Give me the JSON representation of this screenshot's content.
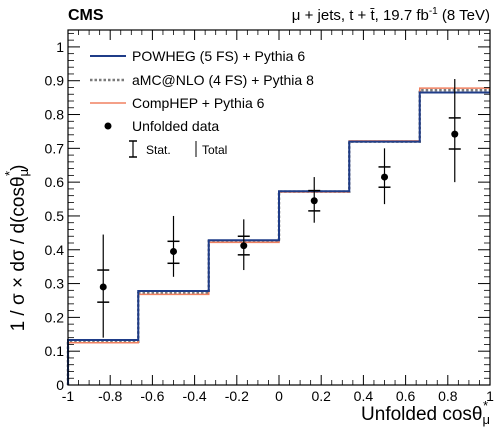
{
  "header": {
    "experiment": "CMS",
    "channel_text": "μ + jets, t + t̄, 19.7 fb",
    "lumi_exponent": "-1",
    "energy_text": " (8 TeV)"
  },
  "axes": {
    "x_title_main": "Unfolded cosθ",
    "x_title_sub": "μ",
    "x_title_sup": "*",
    "y_title_main": "1 / σ × dσ / d(cosθ",
    "y_title_sub": "μ",
    "y_title_sup": "*",
    "y_title_end": ")"
  },
  "legend": {
    "powheg": "POWHEG (5 FS) + Pythia 6",
    "amcnlo": "aMC@NLO (4 FS) + Pythia 8",
    "comphep": "CompHEP + Pythia 6",
    "data": "Unfolded data",
    "stat": "Stat.",
    "total": "Total"
  },
  "colors": {
    "powheg": "#1f3c88",
    "amcnlo": "#7a7a7a",
    "comphep": "#f08060",
    "data": "#000000"
  },
  "chart_data": {
    "type": "histogram-with-points",
    "xlim": [
      -1,
      1
    ],
    "ylim": [
      0,
      1.05
    ],
    "x_ticks": [
      -1,
      -0.8,
      -0.6,
      -0.4,
      -0.2,
      0,
      0.2,
      0.4,
      0.6,
      0.8,
      1
    ],
    "x_tick_labels": [
      "-1",
      "-0.8",
      "-0.6",
      "-0.4",
      "-0.2",
      "0",
      "0.2",
      "0.4",
      "0.6",
      "0.8",
      "1"
    ],
    "y_ticks": [
      0,
      0.1,
      0.2,
      0.3,
      0.4,
      0.5,
      0.6,
      0.7,
      0.8,
      0.9,
      1
    ],
    "y_tick_labels": [
      "0",
      "0.1",
      "0.2",
      "0.3",
      "0.4",
      "0.5",
      "0.6",
      "0.7",
      "0.8",
      "0.9",
      "1"
    ],
    "bin_edges": [
      -1,
      -0.667,
      -0.333,
      0,
      0.333,
      0.667,
      1
    ],
    "series": [
      {
        "name": "POWHEG (5 FS) + Pythia 6",
        "style": "solid",
        "values": [
          0.133,
          0.278,
          0.428,
          0.573,
          0.72,
          0.865
        ]
      },
      {
        "name": "aMC@NLO (4 FS) + Pythia 8",
        "style": "dotted",
        "values": [
          0.128,
          0.272,
          0.425,
          0.572,
          0.72,
          0.872
        ]
      },
      {
        "name": "CompHEP + Pythia 6",
        "style": "solid",
        "values": [
          0.125,
          0.268,
          0.422,
          0.571,
          0.722,
          0.878
        ]
      }
    ],
    "data_points": {
      "name": "Unfolded data",
      "x": [
        -0.833,
        -0.5,
        -0.167,
        0.167,
        0.5,
        0.833
      ],
      "y": [
        0.29,
        0.395,
        0.412,
        0.545,
        0.615,
        0.742
      ],
      "stat_low": [
        0.245,
        0.36,
        0.385,
        0.515,
        0.585,
        0.698
      ],
      "stat_high": [
        0.34,
        0.425,
        0.44,
        0.575,
        0.645,
        0.79
      ],
      "total_low": [
        0.14,
        0.32,
        0.34,
        0.48,
        0.535,
        0.6
      ],
      "total_high": [
        0.445,
        0.5,
        0.49,
        0.615,
        0.7,
        0.905
      ]
    }
  }
}
